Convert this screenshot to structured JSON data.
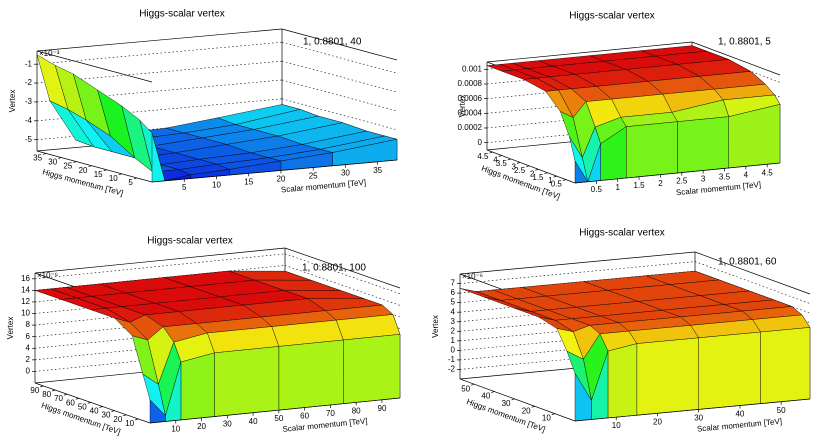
{
  "chart_data": [
    {
      "type": "surface",
      "title": "Higgs-scalar vertex",
      "legend": "1, 0.8801, 40",
      "xlabel": "Scalar momentum [TeV]",
      "ylabel": "Higgs momentum [TeV]",
      "zlabel": "Vertex",
      "z_exponent": "×10⁻³",
      "x": [
        0,
        2,
        6,
        12,
        20,
        28,
        38
      ],
      "y": [
        0,
        4,
        10,
        18,
        26,
        32,
        38
      ],
      "z": [
        [
          -3.0,
          -5.6,
          -5.4,
          -5.3,
          -5.1,
          -4.9,
          -4.5
        ],
        [
          -2.5,
          -5.3,
          -5.3,
          -5.2,
          -5.1,
          -4.9,
          -4.5
        ],
        [
          -2.0,
          -4.8,
          -5.3,
          -5.2,
          -5.1,
          -4.9,
          -4.5
        ],
        [
          -1.5,
          -4.0,
          -5.3,
          -5.2,
          -5.0,
          -4.8,
          -4.4
        ],
        [
          -1.0,
          -3.5,
          -5.3,
          -5.2,
          -5.0,
          -4.8,
          -4.4
        ],
        [
          -0.8,
          -3.2,
          -5.3,
          -5.1,
          -5.0,
          -4.8,
          -4.3
        ],
        [
          -0.5,
          -3.0,
          -5.2,
          -5.1,
          -5.0,
          -4.7,
          -4.3
        ]
      ],
      "xlim": [
        0,
        38
      ],
      "ylim": [
        0,
        38
      ],
      "zlim": [
        -5.6,
        -0.3
      ],
      "xticks": [
        5,
        10,
        15,
        20,
        25,
        30,
        35
      ],
      "yticks": [
        5,
        10,
        15,
        20,
        25,
        30,
        35
      ],
      "zticks": [
        -5,
        -4,
        -3,
        -2,
        -1
      ]
    },
    {
      "type": "surface",
      "title": "Higgs-scalar vertex",
      "legend": "1, 0.8801, 5",
      "xlabel": "Scalar momentum [TeV]",
      "ylabel": "Higgs momentum [TeV]",
      "zlabel": "Vertex",
      "x": [
        0,
        0.3,
        0.6,
        1.2,
        2.4,
        3.6,
        4.8
      ],
      "y": [
        0,
        0.3,
        0.8,
        1.6,
        2.8,
        4.0,
        4.8
      ],
      "z": [
        [
          0.0002,
          -0.0001,
          0.0004,
          0.0006,
          0.0006,
          0.0006,
          0.0007
        ],
        [
          0.0005,
          0.0002,
          0.0006,
          0.0007,
          0.0007,
          0.0008,
          0.0008
        ],
        [
          0.0008,
          0.0007,
          0.0009,
          0.0009,
          0.0009,
          0.0009,
          0.0009
        ],
        [
          0.001,
          0.001,
          0.001,
          0.001,
          0.001,
          0.001,
          0.001
        ],
        [
          0.00105,
          0.00105,
          0.00105,
          0.00105,
          0.00105,
          0.00105,
          0.00105
        ],
        [
          0.00105,
          0.00105,
          0.00105,
          0.00105,
          0.00105,
          0.00105,
          0.00105
        ],
        [
          0.00105,
          0.00105,
          0.00105,
          0.00105,
          0.00105,
          0.00105,
          0.00105
        ]
      ],
      "xlim": [
        0,
        4.8
      ],
      "ylim": [
        0,
        4.8
      ],
      "zlim": [
        -0.0001,
        0.0011
      ],
      "xticks": [
        0.5,
        1,
        1.5,
        2,
        2.5,
        3,
        3.5,
        4,
        4.5
      ],
      "yticks": [
        0.5,
        1,
        1.5,
        2,
        2.5,
        3,
        3.5,
        4,
        4.5
      ],
      "zticks": [
        0,
        0.0002,
        0.0004,
        0.0006,
        0.0008,
        0.001
      ]
    },
    {
      "type": "surface",
      "title": "Higgs-scalar vertex",
      "legend": "1, 0.8801, 100",
      "xlabel": "Scalar momentum [TeV]",
      "ylabel": "Higgs momentum [TeV]",
      "zlabel": "Vertex",
      "z_exponent": "×10⁻⁶",
      "x": [
        0,
        6,
        12,
        25,
        50,
        75,
        97
      ],
      "y": [
        0,
        6,
        15,
        30,
        50,
        75,
        97
      ],
      "z": [
        [
          2,
          -1,
          8,
          9,
          9,
          9,
          9
        ],
        [
          6,
          4,
          11,
          12,
          12,
          12,
          12
        ],
        [
          12,
          11,
          13,
          13,
          13,
          13,
          13
        ],
        [
          14,
          13,
          14,
          14,
          14,
          14,
          13
        ],
        [
          14,
          14,
          14,
          14,
          14,
          14,
          13
        ],
        [
          14,
          14,
          14,
          14,
          14,
          14,
          13
        ],
        [
          14,
          14,
          14,
          14,
          14,
          14,
          13
        ]
      ],
      "xlim": [
        0,
        97
      ],
      "ylim": [
        0,
        97
      ],
      "zlim": [
        -2,
        17
      ],
      "xticks": [
        10,
        20,
        30,
        40,
        50,
        60,
        70,
        80,
        90
      ],
      "yticks": [
        10,
        20,
        30,
        40,
        50,
        60,
        70,
        80,
        90
      ],
      "zticks": [
        0,
        2,
        4,
        6,
        8,
        10,
        12,
        14,
        16
      ]
    },
    {
      "type": "surface",
      "title": "Higgs-scalar vertex",
      "legend": "1, 0.8801, 60",
      "xlabel": "Scalar momentum [TeV]",
      "ylabel": "Higgs momentum [TeV]",
      "zlabel": "Vertex",
      "z_exponent": "×10⁻⁶",
      "x": [
        0,
        4,
        8,
        15,
        30,
        45,
        57
      ],
      "y": [
        0,
        4,
        9,
        18,
        30,
        45,
        57
      ],
      "z": [
        [
          2,
          -1,
          4,
          4.5,
          4.5,
          4.5,
          4.5
        ],
        [
          4,
          3,
          5.5,
          5.5,
          5.5,
          5.5,
          5.5
        ],
        [
          6,
          5.5,
          6,
          6,
          6,
          6,
          6
        ],
        [
          6.5,
          6,
          6,
          6,
          6,
          6,
          6
        ],
        [
          6.5,
          6,
          6,
          6,
          6,
          6,
          6
        ],
        [
          6.5,
          6,
          6,
          6,
          6,
          6,
          6
        ],
        [
          6.5,
          6,
          6,
          6,
          6,
          6,
          6
        ]
      ],
      "xlim": [
        0,
        57
      ],
      "ylim": [
        0,
        57
      ],
      "zlim": [
        -3,
        8
      ],
      "xticks": [
        10,
        20,
        30,
        40,
        50
      ],
      "yticks": [
        10,
        20,
        30,
        40,
        50
      ],
      "zticks": [
        -2,
        -1,
        0,
        1,
        2,
        3,
        4,
        5,
        6,
        7
      ]
    }
  ]
}
